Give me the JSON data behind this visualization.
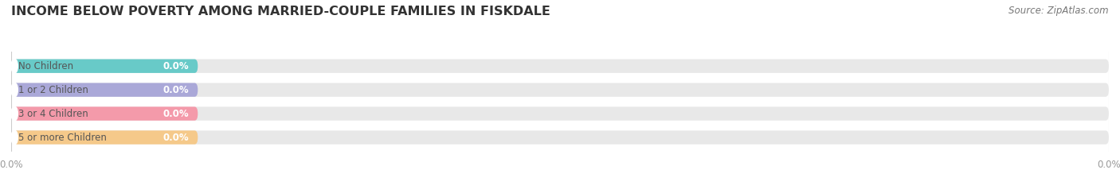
{
  "title": "INCOME BELOW POVERTY AMONG MARRIED-COUPLE FAMILIES IN FISKDALE",
  "source": "Source: ZipAtlas.com",
  "categories": [
    "No Children",
    "1 or 2 Children",
    "3 or 4 Children",
    "5 or more Children"
  ],
  "values": [
    0.0,
    0.0,
    0.0,
    0.0
  ],
  "bar_colors": [
    "#68cac8",
    "#aaa8d8",
    "#f49aaa",
    "#f5c98a"
  ],
  "bar_bg_color": "#e8e8e8",
  "background_color": "#ffffff",
  "title_fontsize": 11.5,
  "label_fontsize": 8.5,
  "value_fontsize": 8.5,
  "source_fontsize": 8.5,
  "text_color": "#555555",
  "value_color": "#ffffff",
  "source_color": "#777777"
}
